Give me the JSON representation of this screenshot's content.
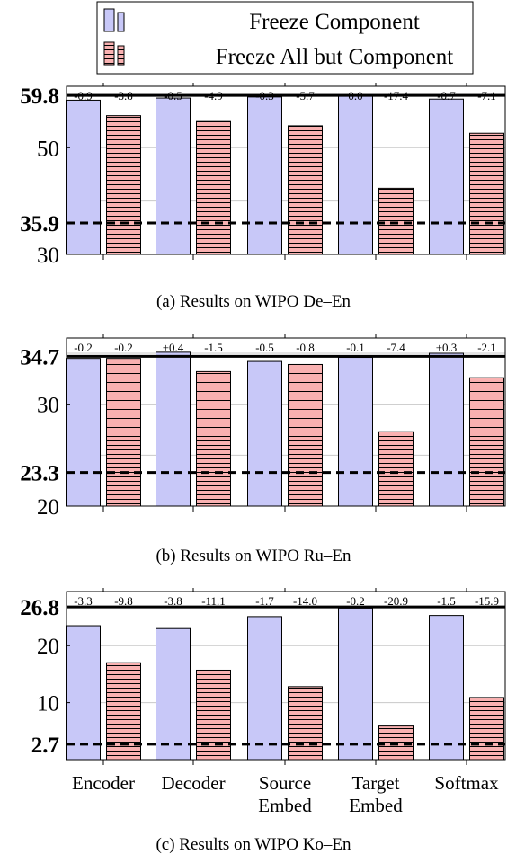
{
  "legend": {
    "items": [
      {
        "label": "Freeze Component",
        "color": "#c8c8f8",
        "pattern": "solid"
      },
      {
        "label": "Freeze All but Component",
        "color": "#f7a8a8",
        "pattern": "horizontal-lines"
      }
    ]
  },
  "chart_data": [
    {
      "type": "bar",
      "caption": "(a) Results on WIPO De–En",
      "categories": [
        "Encoder",
        "Decoder",
        "Source Embed",
        "Target Embed",
        "Softmax"
      ],
      "series": [
        {
          "name": "Freeze Component",
          "values": [
            58.9,
            59.3,
            59.5,
            59.8,
            59.1
          ],
          "labels": [
            "-0.9",
            "-0.5",
            "-0.3",
            "0.0",
            "-0.7"
          ]
        },
        {
          "name": "Freeze All but Component",
          "values": [
            56.0,
            54.9,
            54.1,
            42.4,
            52.7
          ],
          "labels": [
            "-3.8",
            "-4.9",
            "-5.7",
            "-17.4",
            "-7.1"
          ]
        }
      ],
      "ylim": [
        30,
        61.5
      ],
      "yticks": [
        {
          "value": 30,
          "label": "30",
          "bold": false
        },
        {
          "value": 35.9,
          "label": "35.9",
          "bold": true
        },
        {
          "value": 50,
          "label": "50",
          "bold": false
        },
        {
          "value": 59.8,
          "label": "59.8",
          "bold": true
        }
      ],
      "gridlines": [
        40,
        50,
        60
      ],
      "reference_lines": [
        {
          "value": 59.8,
          "style": "solid"
        },
        {
          "value": 35.9,
          "style": "dashed"
        }
      ],
      "show_xlabels": false
    },
    {
      "type": "bar",
      "caption": "(b) Results on WIPO Ru–En",
      "categories": [
        "Encoder",
        "Decoder",
        "Source Embed",
        "Target Embed",
        "Softmax"
      ],
      "series": [
        {
          "name": "Freeze Component",
          "values": [
            34.5,
            35.1,
            34.2,
            34.6,
            35.0
          ],
          "labels": [
            "-0.2",
            "+0.4",
            "-0.5",
            "-0.1",
            "+0.3"
          ]
        },
        {
          "name": "Freeze All but Component",
          "values": [
            34.5,
            33.2,
            33.9,
            27.3,
            32.6
          ],
          "labels": [
            "-0.2",
            "-1.5",
            "-0.8",
            "-7.4",
            "-2.1"
          ]
        }
      ],
      "ylim": [
        20,
        36.5
      ],
      "yticks": [
        {
          "value": 20,
          "label": "20",
          "bold": false
        },
        {
          "value": 23.3,
          "label": "23.3",
          "bold": true
        },
        {
          "value": 30,
          "label": "30",
          "bold": false
        },
        {
          "value": 34.7,
          "label": "34.7",
          "bold": true
        }
      ],
      "gridlines": [
        25,
        30,
        35
      ],
      "reference_lines": [
        {
          "value": 34.7,
          "style": "solid"
        },
        {
          "value": 23.3,
          "style": "dashed"
        }
      ],
      "show_xlabels": false
    },
    {
      "type": "bar",
      "caption": "(c) Results on WIPO Ko–En",
      "categories": [
        "Encoder",
        "Decoder",
        "Source Embed",
        "Target Embed",
        "Softmax"
      ],
      "category_lines": [
        [
          "Encoder"
        ],
        [
          "Decoder"
        ],
        [
          "Source",
          "Embed"
        ],
        [
          "Target",
          "Embed"
        ],
        [
          "Softmax"
        ]
      ],
      "series": [
        {
          "name": "Freeze Component",
          "values": [
            23.5,
            23.0,
            25.1,
            26.6,
            25.3
          ],
          "labels": [
            "-3.3",
            "-3.8",
            "-1.7",
            "-0.2",
            "-1.5"
          ]
        },
        {
          "name": "Freeze All but Component",
          "values": [
            17.0,
            15.7,
            12.8,
            5.9,
            10.9
          ],
          "labels": [
            "-9.8",
            "-11.1",
            "-14.0",
            "-20.9",
            "-15.9"
          ]
        }
      ],
      "ylim": [
        0,
        29.5
      ],
      "yticks": [
        {
          "value": 2.7,
          "label": "2.7",
          "bold": true
        },
        {
          "value": 10,
          "label": "10",
          "bold": false
        },
        {
          "value": 20,
          "label": "20",
          "bold": false
        },
        {
          "value": 26.8,
          "label": "26.8",
          "bold": true
        }
      ],
      "gridlines": [
        10,
        20
      ],
      "reference_lines": [
        {
          "value": 26.8,
          "style": "solid"
        },
        {
          "value": 2.7,
          "style": "dashed"
        }
      ],
      "show_xlabels": true
    }
  ]
}
